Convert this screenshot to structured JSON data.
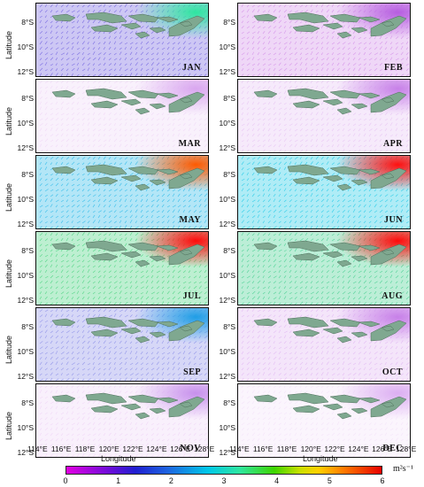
{
  "panels": [
    {
      "month": "JAN",
      "bg": "#6f5fe0",
      "accent": "#2ee6a0"
    },
    {
      "month": "FEB",
      "bg": "#d28be8",
      "accent": "#b65de0"
    },
    {
      "month": "MAR",
      "bg": "#efd6f6",
      "accent": "#d9a6ef"
    },
    {
      "month": "APR",
      "bg": "#e6c2f3",
      "accent": "#c780e8"
    },
    {
      "month": "MAY",
      "bg": "#24b7e8",
      "accent": "#ff5a00"
    },
    {
      "month": "JUN",
      "bg": "#1bc8e6",
      "accent": "#ff1010"
    },
    {
      "month": "JUL",
      "bg": "#42d27a",
      "accent": "#ff0a0a"
    },
    {
      "month": "AUG",
      "bg": "#3fce8c",
      "accent": "#ff0a0a"
    },
    {
      "month": "SEP",
      "bg": "#8a8de8",
      "accent": "#1f9ee6"
    },
    {
      "month": "OCT",
      "bg": "#e0b5f2",
      "accent": "#c780e8"
    },
    {
      "month": "NOV",
      "bg": "#efd3f6",
      "accent": "#c790ec"
    },
    {
      "month": "DEC",
      "bg": "#f3e1f9",
      "accent": "#dcaef2"
    }
  ],
  "axes": {
    "ylabel": "Latitude",
    "xlabel": "Longitude",
    "yticks": [
      "8°S",
      "10°S",
      "12°S"
    ],
    "xticks": [
      "114°E",
      "116°E",
      "118°E",
      "120°E",
      "122°E",
      "124°E",
      "126°E",
      "128°E"
    ]
  },
  "colorbar": {
    "ticks": [
      "0",
      "1",
      "2",
      "3",
      "4",
      "5",
      "6"
    ],
    "unit": "m²s⁻¹"
  },
  "colors": {
    "land": "#7fa890",
    "landStroke": "#4d6e5a"
  }
}
